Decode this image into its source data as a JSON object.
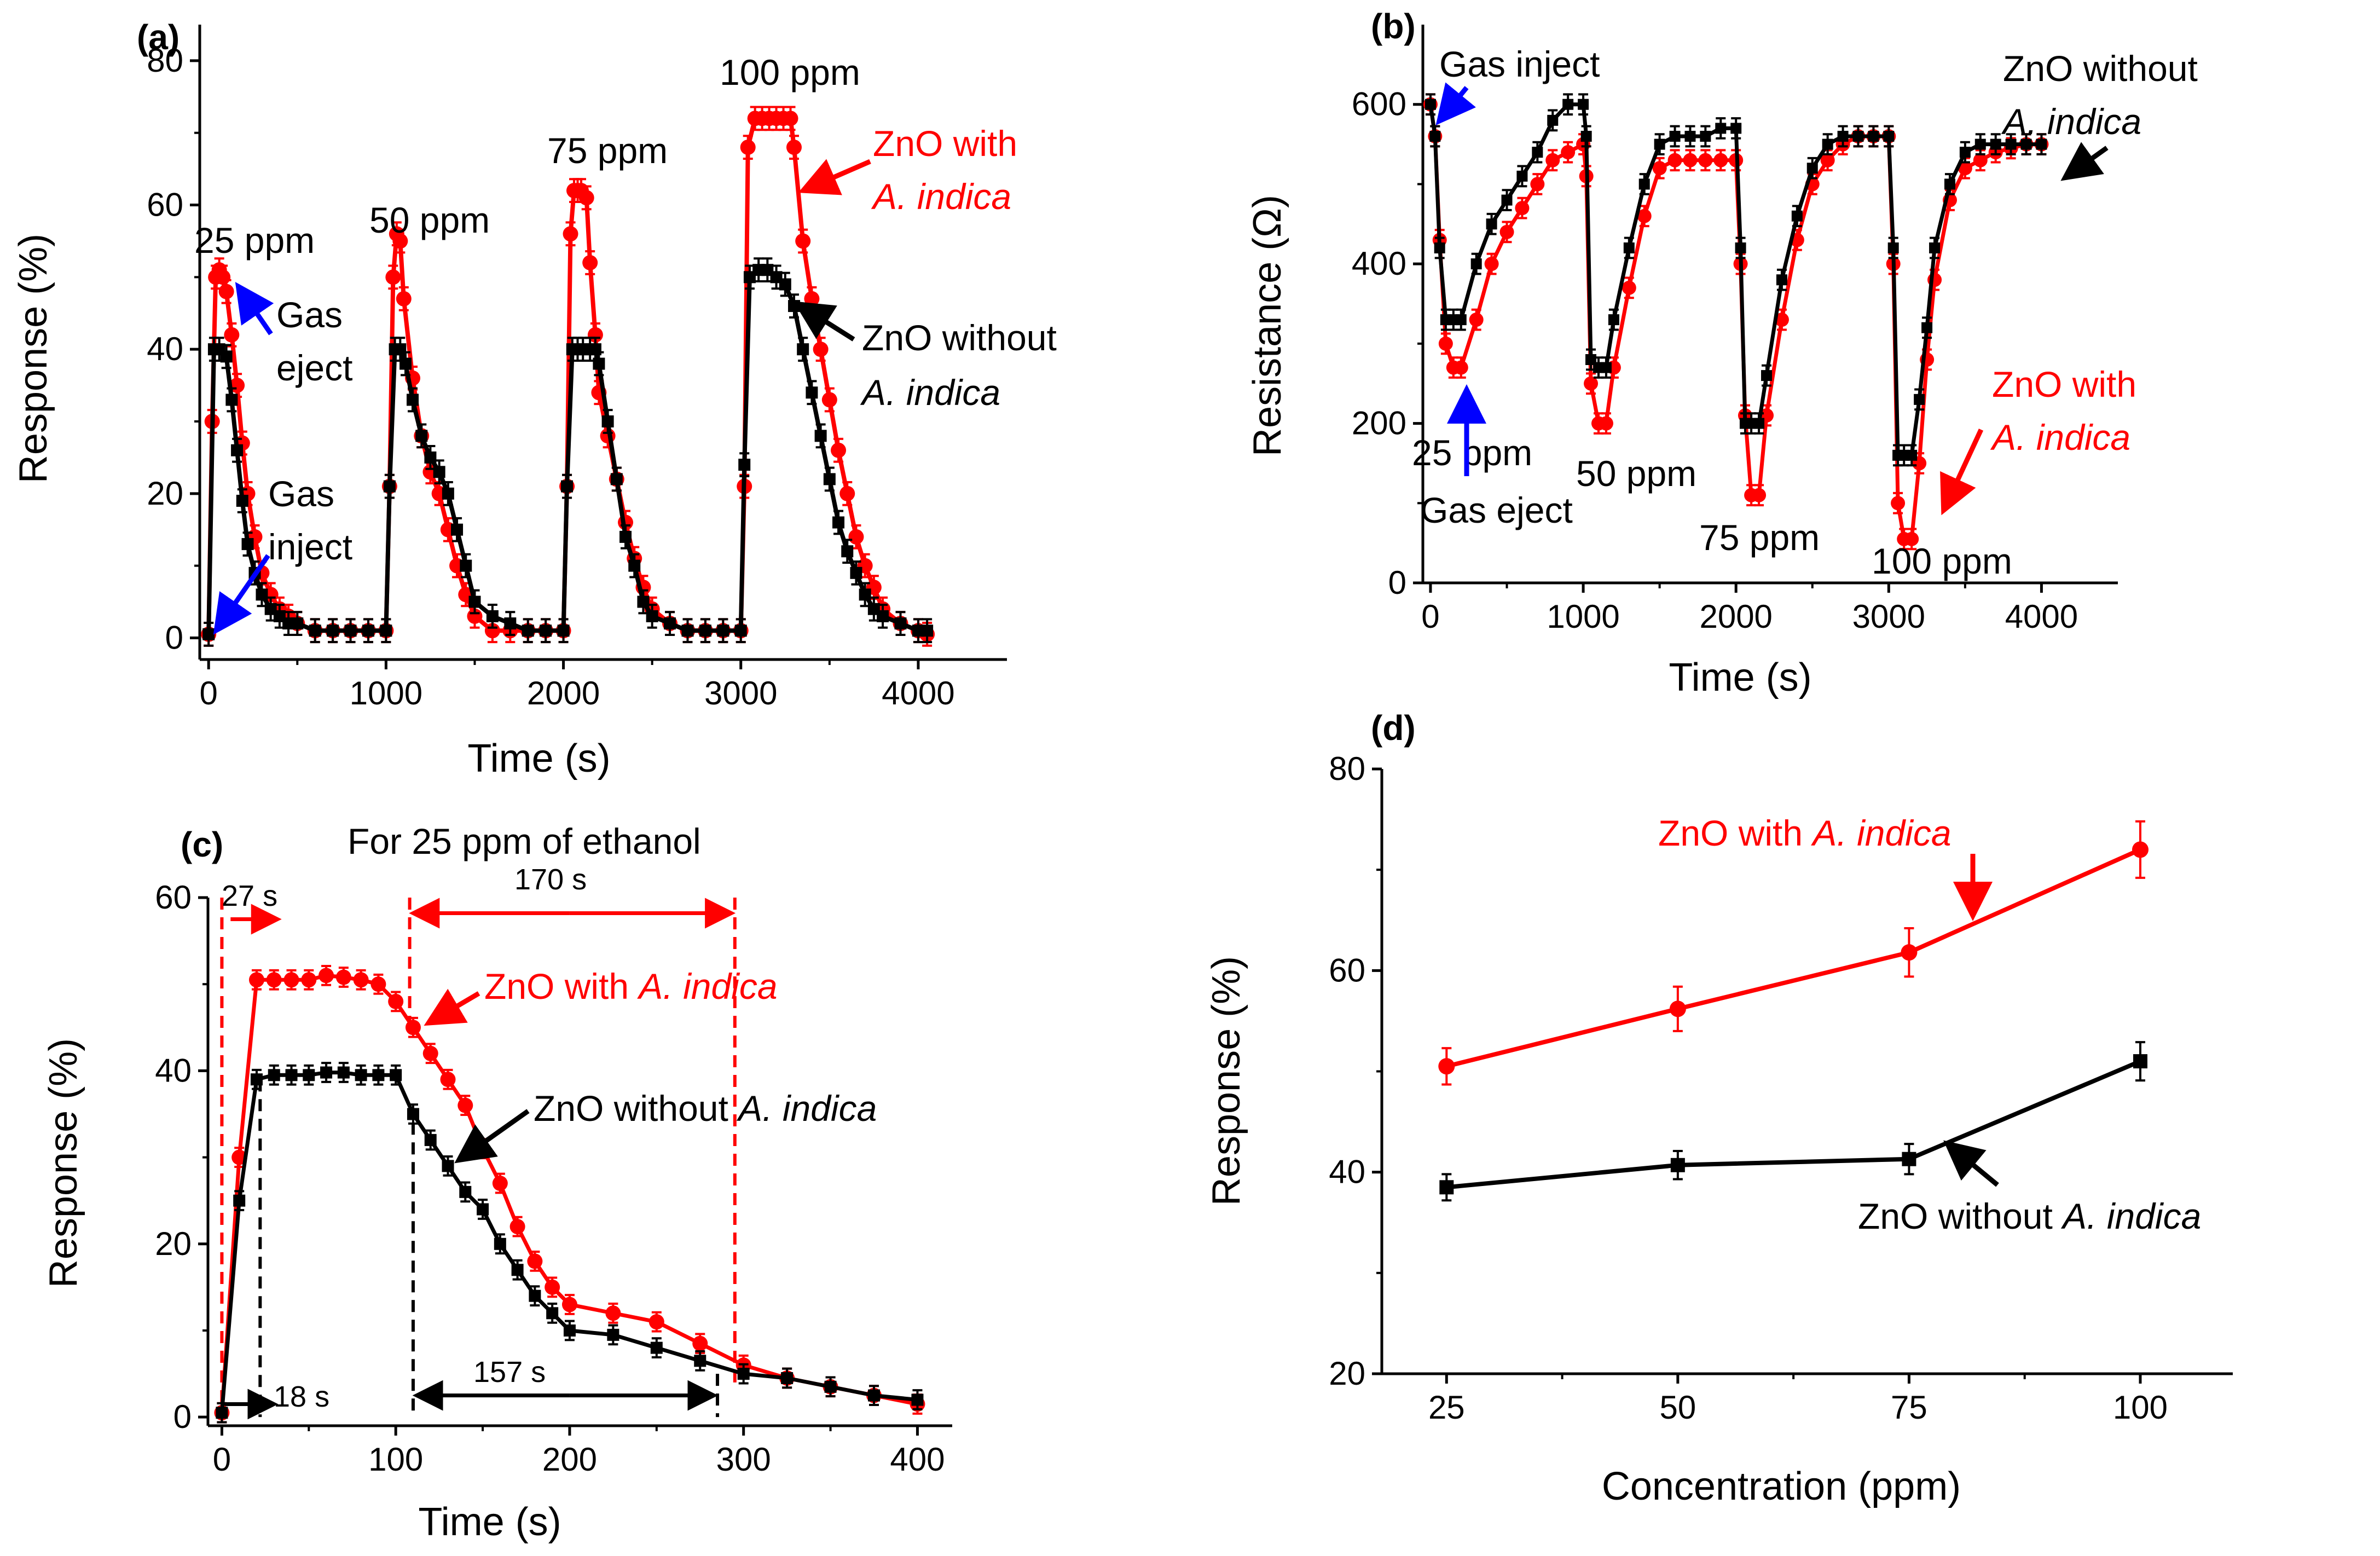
{
  "colors": {
    "with": "#ff0000",
    "without": "#000000",
    "arrow_blue": "#0000ff"
  },
  "chart_data": [
    {
      "type": "line",
      "panel": "(a)",
      "xlabel": "Time (s)",
      "ylabel": "Response (%)",
      "xlim": [
        -50,
        4500
      ],
      "ylim": [
        -3,
        85
      ],
      "xticks": [
        "0",
        "1000",
        "2000",
        "3000",
        "4000"
      ],
      "yticks": [
        "0",
        "20",
        "40",
        "60",
        "80"
      ],
      "series": [
        {
          "name": "ZnO with A. indica",
          "color": "#ff0000",
          "x": [
            0,
            20,
            40,
            60,
            80,
            100,
            130,
            160,
            190,
            220,
            260,
            300,
            350,
            400,
            450,
            500,
            600,
            700,
            800,
            900,
            1000,
            1020,
            1040,
            1060,
            1080,
            1100,
            1150,
            1200,
            1250,
            1300,
            1350,
            1400,
            1450,
            1500,
            1600,
            1700,
            1800,
            1900,
            2000,
            2020,
            2040,
            2060,
            2080,
            2100,
            2130,
            2150,
            2180,
            2200,
            2250,
            2300,
            2350,
            2400,
            2450,
            2500,
            2600,
            2700,
            2800,
            2900,
            3000,
            3020,
            3040,
            3080,
            3120,
            3160,
            3200,
            3240,
            3280,
            3300,
            3350,
            3400,
            3450,
            3500,
            3550,
            3600,
            3650,
            3700,
            3750,
            3800,
            3900,
            4000,
            4050
          ],
          "y": [
            0.5,
            30,
            50,
            51,
            50,
            48,
            42,
            35,
            27,
            20,
            14,
            9,
            6,
            4,
            3,
            2,
            1,
            1,
            1,
            1,
            1,
            21,
            50,
            56,
            55,
            47,
            36,
            28,
            23,
            20,
            15,
            10,
            6,
            3,
            1,
            1,
            1,
            1,
            1,
            21,
            56,
            62,
            62,
            62,
            61,
            52,
            42,
            34,
            28,
            22,
            16,
            11,
            7,
            4,
            2,
            1,
            1,
            1,
            1,
            21,
            68,
            72,
            72,
            72,
            72,
            72,
            72,
            68,
            55,
            47,
            40,
            33,
            26,
            20,
            14,
            10,
            7,
            4,
            2,
            1,
            0.5
          ]
        },
        {
          "name": "ZnO without A. indica",
          "color": "#000000",
          "x": [
            0,
            30,
            60,
            100,
            130,
            160,
            190,
            220,
            260,
            300,
            350,
            400,
            450,
            500,
            600,
            700,
            800,
            900,
            1000,
            1020,
            1050,
            1080,
            1110,
            1150,
            1200,
            1250,
            1300,
            1350,
            1400,
            1450,
            1500,
            1600,
            1700,
            1800,
            1900,
            2000,
            2020,
            2050,
            2080,
            2110,
            2150,
            2180,
            2200,
            2250,
            2300,
            2350,
            2400,
            2450,
            2500,
            2600,
            2700,
            2800,
            2900,
            3000,
            3020,
            3050,
            3100,
            3150,
            3200,
            3250,
            3300,
            3350,
            3400,
            3450,
            3500,
            3550,
            3600,
            3650,
            3700,
            3750,
            3800,
            3900,
            4000,
            4050
          ],
          "y": [
            0.5,
            40,
            40,
            39,
            33,
            26,
            19,
            13,
            9,
            6,
            4,
            3,
            2,
            2,
            1,
            1,
            1,
            1,
            1,
            21,
            40,
            40,
            38,
            33,
            28,
            25,
            23,
            20,
            15,
            10,
            5,
            3,
            2,
            1,
            1,
            1,
            21,
            40,
            40,
            40,
            40,
            40,
            38,
            30,
            22,
            14,
            10,
            5,
            3,
            2,
            1,
            1,
            1,
            1,
            24,
            50,
            51,
            51,
            50,
            49,
            46,
            40,
            34,
            28,
            22,
            16,
            12,
            9,
            6,
            4,
            3,
            2,
            1,
            1
          ]
        }
      ],
      "annotations": [
        {
          "text": "25 ppm"
        },
        {
          "text": "50 ppm"
        },
        {
          "text": "75 ppm"
        },
        {
          "text": "100 ppm"
        },
        {
          "text": "Gas eject"
        },
        {
          "text": "Gas inject"
        },
        {
          "text": "ZnO with A. indica"
        },
        {
          "text": "ZnO without A. indica"
        }
      ]
    },
    {
      "type": "line",
      "panel": "(b)",
      "xlabel": "Time (s)",
      "ylabel": "Resistance (Ω)",
      "xlim": [
        -50,
        4500
      ],
      "ylim": [
        0,
        700
      ],
      "xticks": [
        "0",
        "1000",
        "2000",
        "3000",
        "4000"
      ],
      "yticks": [
        "0",
        "200",
        "400",
        "600"
      ],
      "series": [
        {
          "name": "ZnO with A. indica",
          "color": "#ff0000",
          "x": [
            0,
            30,
            60,
            100,
            150,
            200,
            300,
            400,
            500,
            600,
            700,
            800,
            900,
            1000,
            1020,
            1050,
            1100,
            1150,
            1200,
            1300,
            1400,
            1500,
            1600,
            1700,
            1800,
            1900,
            2000,
            2030,
            2060,
            2100,
            2150,
            2200,
            2300,
            2400,
            2500,
            2600,
            2700,
            2800,
            2900,
            3000,
            3030,
            3060,
            3100,
            3150,
            3200,
            3250,
            3300,
            3400,
            3500,
            3600,
            3700,
            3800,
            3900,
            4000
          ],
          "y": [
            600,
            560,
            430,
            300,
            270,
            270,
            330,
            400,
            440,
            470,
            500,
            530,
            540,
            550,
            510,
            250,
            200,
            200,
            270,
            370,
            460,
            520,
            530,
            530,
            530,
            530,
            530,
            400,
            210,
            110,
            110,
            210,
            330,
            430,
            500,
            530,
            550,
            560,
            560,
            560,
            400,
            100,
            55,
            55,
            150,
            280,
            380,
            480,
            520,
            530,
            540,
            545,
            550,
            550
          ]
        },
        {
          "name": "ZnO without A. indica",
          "color": "#000000",
          "x": [
            0,
            30,
            60,
            100,
            150,
            200,
            300,
            400,
            500,
            600,
            700,
            800,
            900,
            1000,
            1020,
            1050,
            1100,
            1150,
            1200,
            1300,
            1400,
            1500,
            1600,
            1700,
            1800,
            1900,
            2000,
            2030,
            2060,
            2100,
            2150,
            2200,
            2300,
            2400,
            2500,
            2600,
            2700,
            2800,
            2900,
            3000,
            3030,
            3060,
            3100,
            3150,
            3200,
            3250,
            3300,
            3400,
            3500,
            3600,
            3700,
            3800,
            3900,
            4000
          ],
          "y": [
            600,
            560,
            420,
            330,
            330,
            330,
            400,
            450,
            480,
            510,
            540,
            580,
            600,
            600,
            560,
            280,
            270,
            270,
            330,
            420,
            500,
            550,
            560,
            560,
            560,
            570,
            570,
            420,
            200,
            200,
            200,
            260,
            380,
            460,
            520,
            550,
            560,
            560,
            560,
            560,
            420,
            160,
            160,
            160,
            230,
            320,
            420,
            500,
            540,
            550,
            550,
            550,
            550,
            550
          ]
        }
      ],
      "annotations": [
        {
          "text": "Gas inject"
        },
        {
          "text": "Gas eject"
        },
        {
          "text": "25 ppm"
        },
        {
          "text": "50 ppm"
        },
        {
          "text": "75 ppm"
        },
        {
          "text": "100 ppm"
        },
        {
          "text": "ZnO without A. indica"
        },
        {
          "text": "ZnO with A. indica"
        }
      ]
    },
    {
      "type": "line",
      "panel": "(c)",
      "title": "For 25 ppm of ethanol",
      "xlabel": "Time (s)",
      "ylabel": "Response (%)",
      "xlim": [
        -8,
        420
      ],
      "ylim": [
        -1,
        60
      ],
      "xticks": [
        "0",
        "100",
        "200",
        "300",
        "400"
      ],
      "yticks": [
        "0",
        "20",
        "40",
        "60"
      ],
      "series": [
        {
          "name": "ZnO with A. indica",
          "color": "#ff0000",
          "x": [
            0,
            10,
            20,
            30,
            40,
            50,
            60,
            70,
            80,
            90,
            100,
            110,
            120,
            130,
            140,
            150,
            160,
            170,
            180,
            190,
            200,
            225,
            250,
            275,
            300,
            325,
            350,
            375,
            400
          ],
          "y": [
            0.5,
            30,
            50.5,
            50.5,
            50.5,
            50.5,
            51,
            50.8,
            50.5,
            50,
            48,
            45,
            42,
            39,
            36,
            31,
            27,
            22,
            18,
            15,
            13,
            12,
            11,
            8.5,
            6,
            4.5,
            3.5,
            2.5,
            1.5
          ]
        },
        {
          "name": "ZnO without A. indica",
          "color": "#000000",
          "x": [
            0,
            10,
            20,
            30,
            40,
            50,
            60,
            70,
            80,
            90,
            100,
            110,
            120,
            130,
            140,
            150,
            160,
            170,
            180,
            190,
            200,
            225,
            250,
            275,
            300,
            325,
            350,
            375,
            400
          ],
          "y": [
            0.5,
            25,
            39,
            39.5,
            39.5,
            39.5,
            39.8,
            39.8,
            39.5,
            39.5,
            39.5,
            35,
            32,
            29,
            26,
            24,
            20,
            17,
            14,
            12,
            10,
            9.5,
            8,
            6.5,
            5,
            4.5,
            3.5,
            2.5,
            2
          ]
        }
      ],
      "annotations": [
        {
          "text": "27 s"
        },
        {
          "text": "170 s"
        },
        {
          "text": "18 s"
        },
        {
          "text": "157 s"
        },
        {
          "text": "ZnO with A. indica"
        },
        {
          "text": "ZnO without A. indica"
        }
      ]
    },
    {
      "type": "line",
      "panel": "(d)",
      "xlabel": "Concentration (ppm)",
      "ylabel": "Response (%)",
      "xlim": [
        18,
        110
      ],
      "ylim": [
        20,
        80
      ],
      "xticks": [
        "25",
        "50",
        "75",
        "100"
      ],
      "yticks": [
        "20",
        "40",
        "60",
        "80"
      ],
      "series": [
        {
          "name": "ZnO with A. indica",
          "color": "#ff0000",
          "x": [
            25,
            50,
            75,
            100
          ],
          "y": [
            50.5,
            56.2,
            61.8,
            72
          ],
          "err": [
            1.8,
            2.2,
            2.4,
            2.8
          ]
        },
        {
          "name": "ZnO without A. indica",
          "color": "#000000",
          "x": [
            25,
            50,
            75,
            100
          ],
          "y": [
            38.5,
            40.7,
            41.3,
            51
          ],
          "err": [
            1.3,
            1.4,
            1.5,
            1.9
          ]
        }
      ],
      "annotations": [
        {
          "text": "ZnO with A. indica"
        },
        {
          "text": "ZnO without A. indica"
        }
      ]
    }
  ],
  "labels": {
    "a": {
      "panel": "(a)",
      "xlabel": "Time (s)",
      "ylabel": "Response (%)",
      "p25": "25 ppm",
      "p50": "50 ppm",
      "p75": "75 ppm",
      "p100": "100 ppm",
      "gas_eject_1": "Gas",
      "gas_eject_2": "eject",
      "gas_inject_1": "Gas",
      "gas_inject_2": "inject",
      "with_1": "ZnO with",
      "with_2": "A. indica",
      "without_1": "ZnO without",
      "without_2": "A. indica"
    },
    "b": {
      "panel": "(b)",
      "xlabel": "Time (s)",
      "ylabel": "Resistance (Ω)",
      "gas_inject": "Gas inject",
      "gas_eject": "Gas eject",
      "p25": "25 ppm",
      "p50": "50 ppm",
      "p75": "75 ppm",
      "p100": "100 ppm",
      "without_1": "ZnO without",
      "without_2": "A. indica",
      "with_1": "ZnO with",
      "with_2": "A. indica"
    },
    "c": {
      "panel": "(c)",
      "title": "For 25 ppm of ethanol",
      "xlabel": "Time (s)",
      "ylabel": "Response (%)",
      "t27": "27 s",
      "t170": "170 s",
      "t18": "18 s",
      "t157": "157 s",
      "with_a": "ZnO with ",
      "with_b": "A. indica",
      "without_a": "ZnO without ",
      "without_b": "A. indica"
    },
    "d": {
      "panel": "(d)",
      "xlabel": "Concentration (ppm)",
      "ylabel": "Response (%)",
      "with_a": "ZnO with ",
      "with_b": "A. indica",
      "without_a": "ZnO without ",
      "without_b": "A. indica"
    }
  }
}
